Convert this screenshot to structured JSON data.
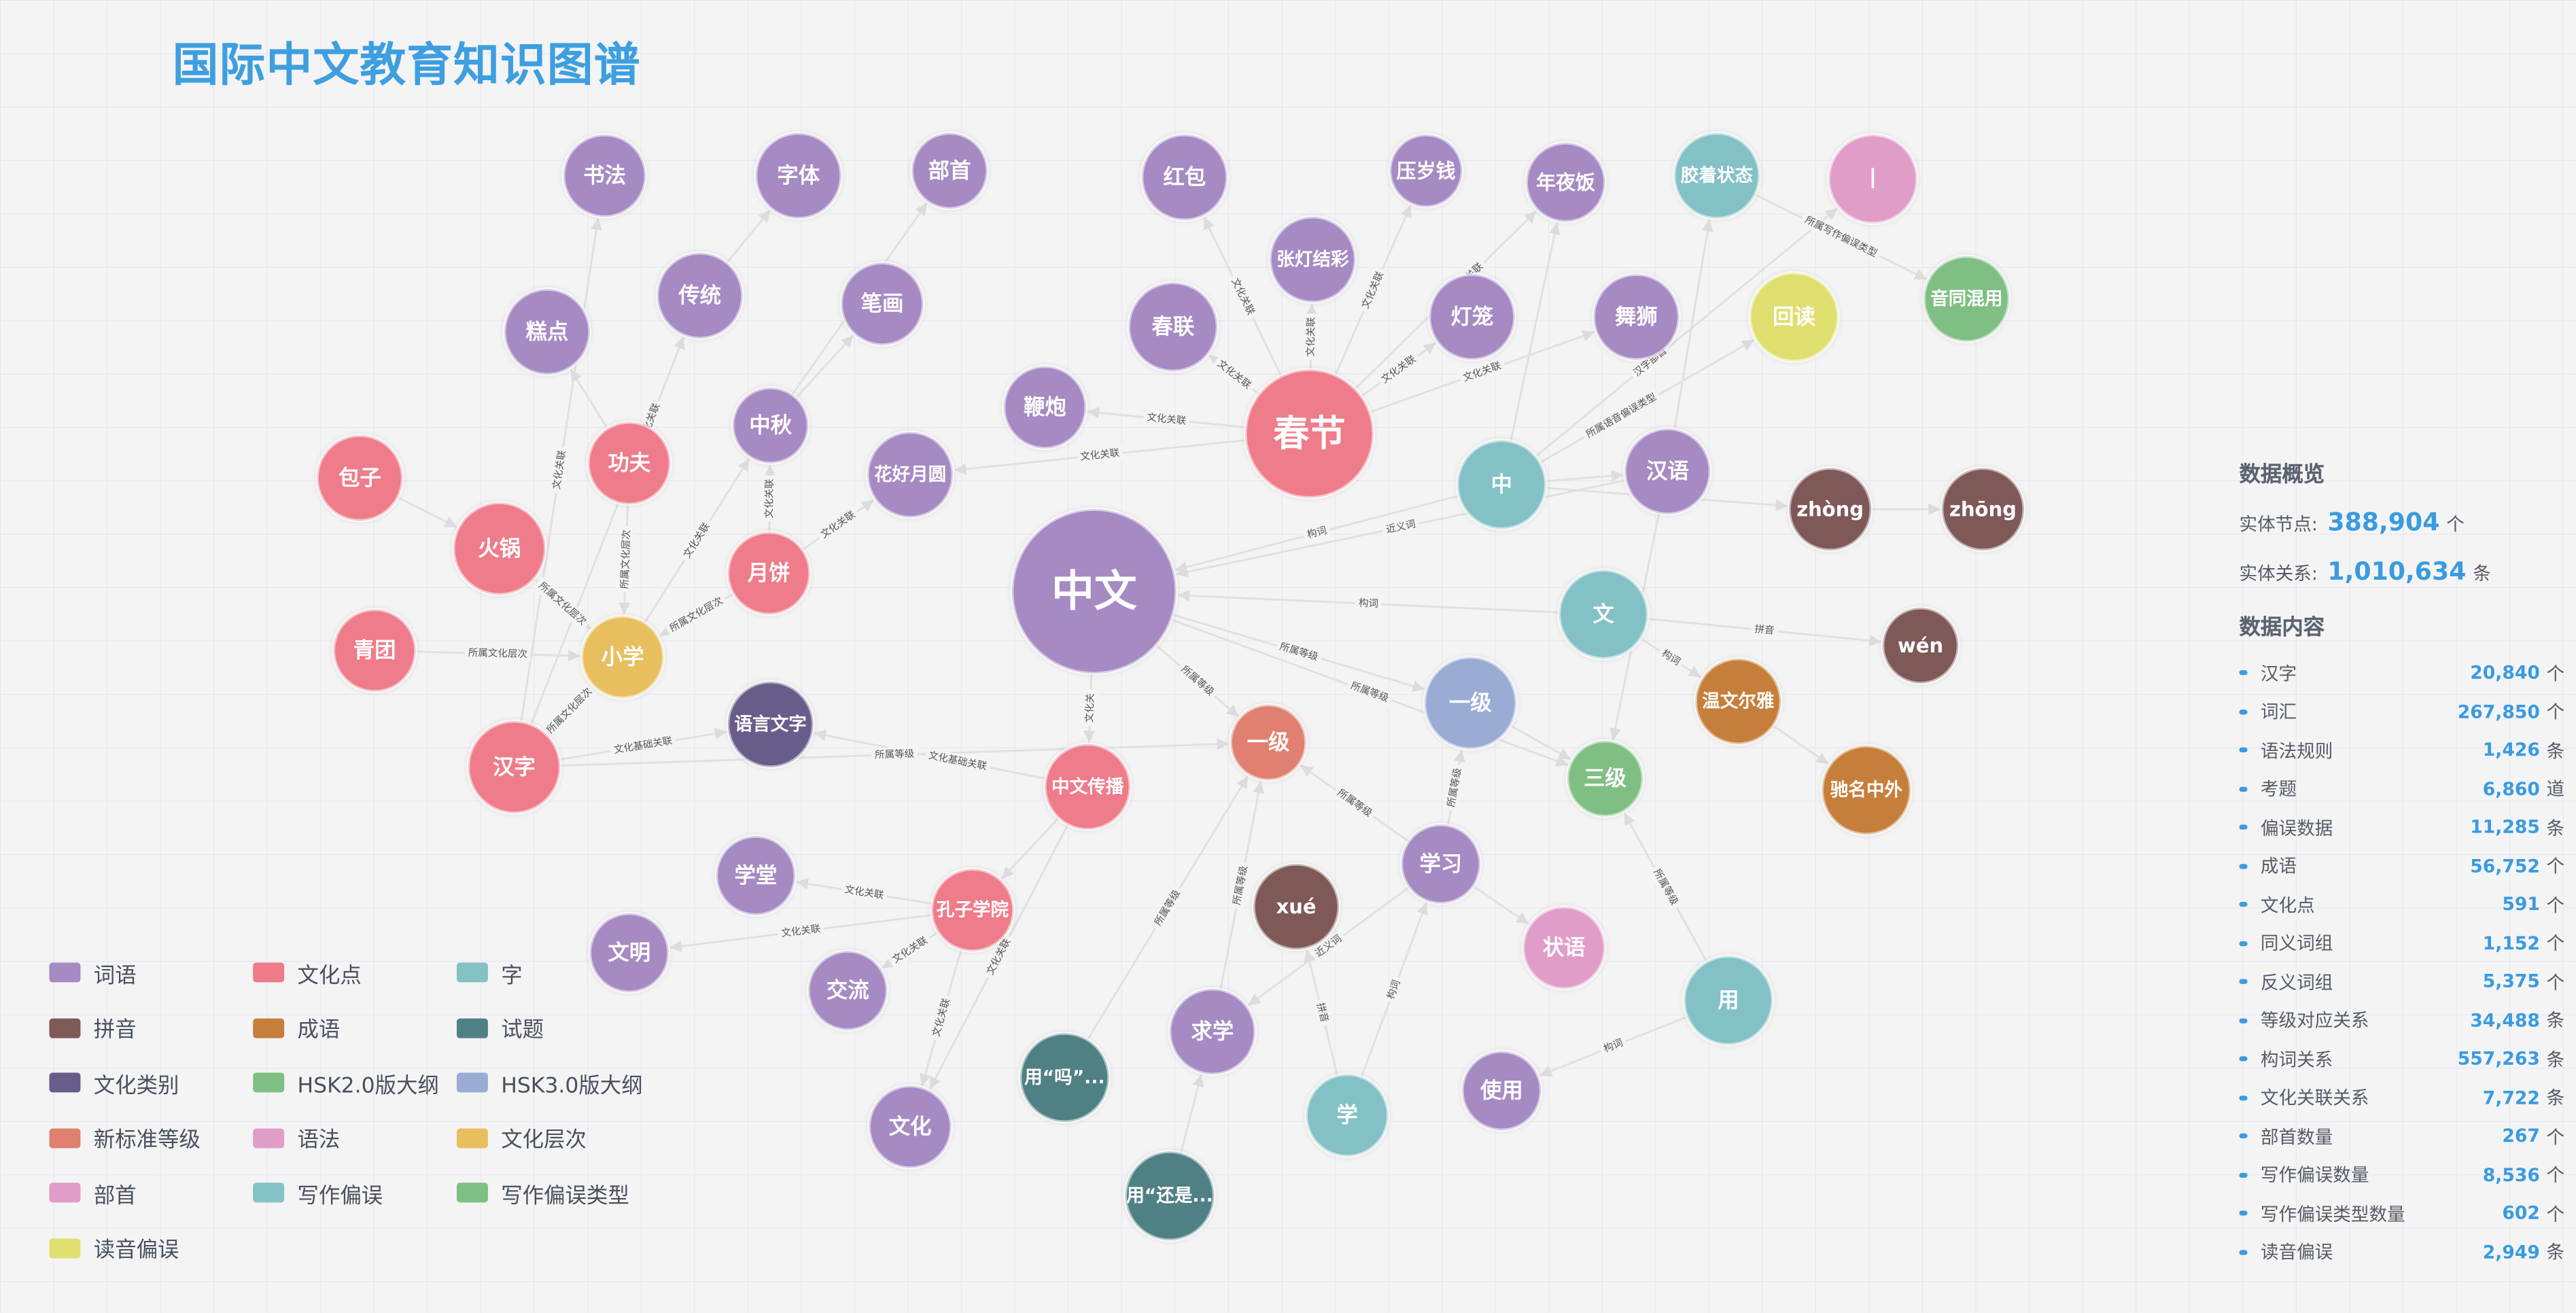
{
  "title": "国际中文教育知识图谱",
  "legend": [
    {
      "label": "词语",
      "color": "#a68ac3"
    },
    {
      "label": "文化点",
      "color": "#ee7b8a"
    },
    {
      "label": "字",
      "color": "#83c1c6"
    },
    {
      "label": "拼音",
      "color": "#7f5858"
    },
    {
      "label": "成语",
      "color": "#c67f3a"
    },
    {
      "label": "试题",
      "color": "#4f8084"
    },
    {
      "label": "文化类别",
      "color": "#675d8a"
    },
    {
      "label": "HSK2.0版大纲",
      "color": "#7fbf83"
    },
    {
      "label": "HSK3.0版大纲",
      "color": "#9aabd4"
    },
    {
      "label": "新标准等级",
      "color": "#e0806f"
    },
    {
      "label": "语法",
      "color": "#e09dc8"
    },
    {
      "label": "文化层次",
      "color": "#e8bf5e"
    },
    {
      "label": "部首",
      "color": "#e09dc8"
    },
    {
      "label": "写作偏误",
      "color": "#83c1c6"
    },
    {
      "label": "写作偏误类型",
      "color": "#7fbf83"
    },
    {
      "label": "读音偏误",
      "color": "#dfdf70"
    }
  ],
  "graph": {
    "nodes": [
      {
        "id": "shufa",
        "label": "书法",
        "category": "词语"
      },
      {
        "id": "ziti",
        "label": "字体",
        "category": "词语"
      },
      {
        "id": "bushou",
        "label": "部首",
        "category": "词语"
      },
      {
        "id": "hongbao",
        "label": "红包",
        "category": "词语"
      },
      {
        "id": "yasuiqian",
        "label": "压岁钱",
        "category": "词语"
      },
      {
        "id": "nianyefan",
        "label": "年夜饭",
        "category": "词语"
      },
      {
        "id": "jiaozhe",
        "label": "胶着状态",
        "category": "写作偏误"
      },
      {
        "id": "shu",
        "label": "丨",
        "category": "部首"
      },
      {
        "id": "zhangdeng",
        "label": "张灯结彩",
        "category": "词语"
      },
      {
        "id": "chuantong",
        "label": "传统",
        "category": "词语"
      },
      {
        "id": "bihua",
        "label": "笔画",
        "category": "词语"
      },
      {
        "id": "gaodian",
        "label": "糕点",
        "category": "词语"
      },
      {
        "id": "chunlian",
        "label": "春联",
        "category": "词语"
      },
      {
        "id": "denglong",
        "label": "灯笼",
        "category": "词语"
      },
      {
        "id": "wushi",
        "label": "舞狮",
        "category": "词语"
      },
      {
        "id": "huidu",
        "label": "回读",
        "category": "读音偏误"
      },
      {
        "id": "yintong",
        "label": "音同混用",
        "category": "写作偏误类型"
      },
      {
        "id": "bianpao",
        "label": "鞭炮",
        "category": "词语"
      },
      {
        "id": "chunjie",
        "label": "春节",
        "category": "文化点"
      },
      {
        "id": "zhongqiu",
        "label": "中秋",
        "category": "词语"
      },
      {
        "id": "huahao",
        "label": "花好月圆",
        "category": "词语"
      },
      {
        "id": "baozi",
        "label": "包子",
        "category": "文化点"
      },
      {
        "id": "gongfu",
        "label": "功夫",
        "category": "文化点"
      },
      {
        "id": "huoguo",
        "label": "火锅",
        "category": "文化点"
      },
      {
        "id": "zhong",
        "label": "中",
        "category": "字"
      },
      {
        "id": "hanyu",
        "label": "汉语",
        "category": "词语"
      },
      {
        "id": "zhong4",
        "label": "zhòng",
        "category": "拼音"
      },
      {
        "id": "zhong1",
        "label": "zhōng",
        "category": "拼音"
      },
      {
        "id": "yuebing",
        "label": "月饼",
        "category": "文化点"
      },
      {
        "id": "zhongwen",
        "label": "中文",
        "category": "词语"
      },
      {
        "id": "wen",
        "label": "文",
        "category": "字"
      },
      {
        "id": "wen2",
        "label": "wén",
        "category": "拼音"
      },
      {
        "id": "qingtuan",
        "label": "青团",
        "category": "文化点"
      },
      {
        "id": "xiaoxue",
        "label": "小学",
        "category": "文化层次"
      },
      {
        "id": "wenwen",
        "label": "温文尔雅",
        "category": "成语"
      },
      {
        "id": "yiji3",
        "label": "一级",
        "category": "HSK3.0版大纲"
      },
      {
        "id": "yuyan",
        "label": "语言文字",
        "category": "文化类别"
      },
      {
        "id": "yijin",
        "label": "一级",
        "category": "新标准等级"
      },
      {
        "id": "hanzi",
        "label": "汉字",
        "category": "文化点"
      },
      {
        "id": "sanji",
        "label": "三级",
        "category": "HSK2.0版大纲"
      },
      {
        "id": "chuanbo",
        "label": "中文传播",
        "category": "文化点"
      },
      {
        "id": "chiming",
        "label": "驰名中外",
        "category": "成语"
      },
      {
        "id": "xuexi",
        "label": "学习",
        "category": "词语"
      },
      {
        "id": "xuetang",
        "label": "学堂",
        "category": "词语"
      },
      {
        "id": "kongzi",
        "label": "孔子学院",
        "category": "文化点"
      },
      {
        "id": "xue2",
        "label": "xué",
        "category": "拼音"
      },
      {
        "id": "zhuangyu",
        "label": "状语",
        "category": "语法"
      },
      {
        "id": "wenming",
        "label": "文明",
        "category": "词语"
      },
      {
        "id": "jiaoliu",
        "label": "交流",
        "category": "词语"
      },
      {
        "id": "yong",
        "label": "用",
        "category": "字"
      },
      {
        "id": "qiuxue",
        "label": "求学",
        "category": "词语"
      },
      {
        "id": "ma",
        "label": "用“吗”...",
        "category": "试题"
      },
      {
        "id": "shiyong",
        "label": "使用",
        "category": "词语"
      },
      {
        "id": "xue",
        "label": "学",
        "category": "字"
      },
      {
        "id": "wenhua",
        "label": "文化",
        "category": "词语"
      },
      {
        "id": "haishi",
        "label": "用“还是...",
        "category": "试题"
      }
    ],
    "edges": [
      {
        "source": "chunjie",
        "target": "hongbao",
        "label": "文化关联"
      },
      {
        "source": "chunjie",
        "target": "zhangdeng",
        "label": "文化关联"
      },
      {
        "source": "chunjie",
        "target": "yasuiqian",
        "label": "文化关联"
      },
      {
        "source": "chunjie",
        "target": "nianyefan",
        "label": "文化关联"
      },
      {
        "source": "chunjie",
        "target": "chunlian",
        "label": "文化关联"
      },
      {
        "source": "chunjie",
        "target": "denglong",
        "label": "文化关联"
      },
      {
        "source": "chunjie",
        "target": "wushi",
        "label": "文化关联"
      },
      {
        "source": "chunjie",
        "target": "bianpao",
        "label": "文化关联"
      },
      {
        "source": "chunjie",
        "target": "huahao",
        "label": "文化关联"
      },
      {
        "source": "zhong",
        "target": "zhongwen",
        "label": "构词"
      },
      {
        "source": "hanyu",
        "target": "zhongwen",
        "label": "近义词"
      },
      {
        "source": "zhong",
        "target": "hanyu",
        "label": ""
      },
      {
        "source": "zhong",
        "target": "zhong4",
        "label": "拼音"
      },
      {
        "source": "zhong4",
        "target": "zhong1",
        "label": ""
      },
      {
        "source": "zhong",
        "target": "shu",
        "label": "汉字部首"
      },
      {
        "source": "zhong",
        "target": "huidu",
        "label": "所属语音偏误类型"
      },
      {
        "source": "jiaozhe",
        "target": "yintong",
        "label": "所属写作偏误类型"
      },
      {
        "source": "hanyu",
        "target": "jiaozhe",
        "label": ""
      },
      {
        "source": "wen",
        "target": "zhongwen",
        "label": "构词"
      },
      {
        "source": "wen",
        "target": "wen2",
        "label": "拼音"
      },
      {
        "source": "wen",
        "target": "wenwen",
        "label": "构词"
      },
      {
        "source": "wenwen",
        "target": "chiming",
        "label": ""
      },
      {
        "source": "hanyu",
        "target": "sanji",
        "label": ""
      },
      {
        "source": "zhongwen",
        "target": "yiji3",
        "label": "所属等级"
      },
      {
        "source": "zhongwen",
        "target": "sanji",
        "label": "所属等级"
      },
      {
        "source": "zhongwen",
        "target": "yijin",
        "label": "所属等级"
      },
      {
        "source": "zhongwen",
        "target": "chuanbo",
        "label": "文化关"
      },
      {
        "source": "yiji3",
        "target": "sanji",
        "label": ""
      },
      {
        "source": "hanzi",
        "target": "yijin",
        "label": "所属等级"
      },
      {
        "source": "chuanbo",
        "target": "yuyan",
        "label": "文化基础关联"
      },
      {
        "source": "hanzi",
        "target": "yuyan",
        "label": "文化基础关联"
      },
      {
        "source": "xuexi",
        "target": "yijin",
        "label": "所属等级"
      },
      {
        "source": "xuexi",
        "target": "yiji3",
        "label": "所属等级"
      },
      {
        "source": "xuexi",
        "target": "zhuangyu",
        "label": ""
      },
      {
        "source": "xuexi",
        "target": "qiuxue",
        "label": "近义词"
      },
      {
        "source": "xue",
        "target": "xuexi",
        "label": "构词"
      },
      {
        "source": "xue",
        "target": "xue2",
        "label": "拼音"
      },
      {
        "source": "qiuxue",
        "target": "yijin",
        "label": "所属等级"
      },
      {
        "source": "ma",
        "target": "yijin",
        "label": "所属等级"
      },
      {
        "source": "haishi",
        "target": "qiuxue",
        "label": ""
      },
      {
        "source": "yong",
        "target": "sanji",
        "label": "所属等级"
      },
      {
        "source": "yong",
        "target": "shiyong",
        "label": "构词"
      },
      {
        "source": "kongzi",
        "target": "xuetang",
        "label": "文化关联"
      },
      {
        "source": "kongzi",
        "target": "wenming",
        "label": "文化关联"
      },
      {
        "source": "kongzi",
        "target": "jiaoliu",
        "label": "文化关联"
      },
      {
        "source": "kongzi",
        "target": "wenhua",
        "label": "文化关联"
      },
      {
        "source": "chuanbo",
        "target": "wenhua",
        "label": "文化关联"
      },
      {
        "source": "chuanbo",
        "target": "kongzi",
        "label": ""
      },
      {
        "source": "qingtuan",
        "target": "xiaoxue",
        "label": "所属文化层次"
      },
      {
        "source": "huoguo",
        "target": "xiaoxue",
        "label": "所属文化层次"
      },
      {
        "source": "gongfu",
        "target": "xiaoxue",
        "label": "所属文化层次"
      },
      {
        "source": "yuebing",
        "target": "xiaoxue",
        "label": "所属文化层次"
      },
      {
        "source": "hanzi",
        "target": "xiaoxue",
        "label": "所属文化层次"
      },
      {
        "source": "baozi",
        "target": "huoguo",
        "label": ""
      },
      {
        "source": "yuebing",
        "target": "zhongqiu",
        "label": "文化关联"
      },
      {
        "source": "yuebing",
        "target": "huahao",
        "label": "文化关联"
      },
      {
        "source": "zhongqiu",
        "target": "bihua",
        "label": ""
      },
      {
        "source": "hanzi",
        "target": "shufa",
        "label": "文化关联"
      },
      {
        "source": "gongfu",
        "target": "gaodian",
        "label": ""
      },
      {
        "source": "hanzi",
        "target": "chuantong",
        "label": "文化关联"
      },
      {
        "source": "xiaoxue",
        "target": "zhongqiu",
        "label": "文化关联"
      },
      {
        "source": "zhongqiu",
        "target": "bushou",
        "label": ""
      },
      {
        "source": "chuantong",
        "target": "ziti",
        "label": ""
      },
      {
        "source": "zhong",
        "target": "nianyefan",
        "label": ""
      }
    ]
  },
  "panel": {
    "overview_title": "数据概览",
    "nodes_label": "实体节点:",
    "nodes_value": "388,904",
    "nodes_unit": "个",
    "relations_label": "实体关系:",
    "relations_value": "1,010,634",
    "relations_unit": "条",
    "content_title": "数据内容",
    "items": [
      {
        "name": "汉字",
        "value": "20,840",
        "unit": "个"
      },
      {
        "name": "词汇",
        "value": "267,850",
        "unit": "个"
      },
      {
        "name": "语法规则",
        "value": "1,426",
        "unit": "条"
      },
      {
        "name": "考题",
        "value": "6,860",
        "unit": "道"
      },
      {
        "name": "偏误数据",
        "value": "11,285",
        "unit": "条"
      },
      {
        "name": "成语",
        "value": "56,752",
        "unit": "个"
      },
      {
        "name": "文化点",
        "value": "591",
        "unit": "个"
      },
      {
        "name": "同义词组",
        "value": "1,152",
        "unit": "个"
      },
      {
        "name": "反义词组",
        "value": "5,375",
        "unit": "个"
      },
      {
        "name": "等级对应关系",
        "value": "34,488",
        "unit": "条"
      },
      {
        "name": "构词关系",
        "value": "557,263",
        "unit": "条"
      },
      {
        "name": "文化关联关系",
        "value": "7,722",
        "unit": "条"
      },
      {
        "name": "部首数量",
        "value": "267",
        "unit": "个"
      },
      {
        "name": "写作偏误数量",
        "value": "8,536",
        "unit": "个"
      },
      {
        "name": "写作偏误类型数量",
        "value": "602",
        "unit": "个"
      },
      {
        "name": "读音偏误",
        "value": "2,949",
        "unit": "条"
      }
    ]
  }
}
